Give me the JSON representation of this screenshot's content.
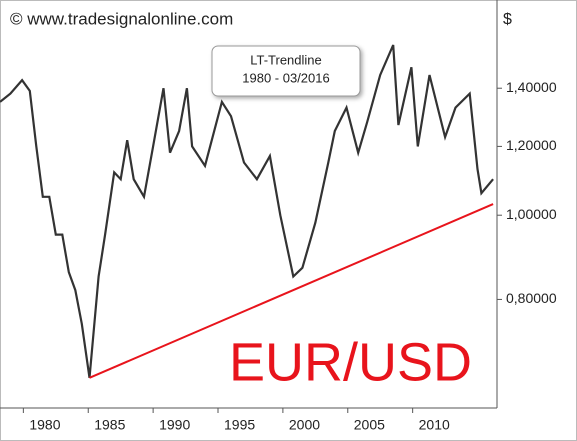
{
  "watermark": "© www.tradesignalonline.com",
  "chart_data": {
    "type": "line",
    "annotation": [
      "LT-Trendline",
      "1980 - 03/2016"
    ],
    "symbol": "EUR/USD",
    "y_axis_label": "$",
    "x": [
      1978.2,
      1979.0,
      1979.9,
      1980.5,
      1981.0,
      1981.5,
      1982.0,
      1982.5,
      1983.0,
      1983.5,
      1984.0,
      1984.5,
      1985.1,
      1985.8,
      1986.3,
      1987.0,
      1987.5,
      1988.0,
      1988.5,
      1989.3,
      1990.0,
      1990.8,
      1991.3,
      1992.0,
      1992.6,
      1993.0,
      1994.0,
      1995.3,
      1996.0,
      1997.0,
      1998.0,
      1999.0,
      1999.8,
      2000.8,
      2001.5,
      2002.5,
      2003.5,
      2004.0,
      2004.9,
      2005.8,
      2006.5,
      2007.5,
      2008.5,
      2008.9,
      2009.9,
      2010.4,
      2011.3,
      2012.5,
      2013.3,
      2014.4,
      2015.0,
      2015.3,
      2016.2
    ],
    "values": [
      1.35,
      1.38,
      1.43,
      1.39,
      1.2,
      1.05,
      1.05,
      0.95,
      0.95,
      0.86,
      0.82,
      0.75,
      0.65,
      0.85,
      0.95,
      1.12,
      1.1,
      1.22,
      1.1,
      1.05,
      1.2,
      1.4,
      1.18,
      1.25,
      1.4,
      1.2,
      1.14,
      1.35,
      1.3,
      1.15,
      1.1,
      1.17,
      1.0,
      0.85,
      0.87,
      0.98,
      1.15,
      1.25,
      1.33,
      1.18,
      1.28,
      1.45,
      1.57,
      1.27,
      1.48,
      1.2,
      1.45,
      1.23,
      1.33,
      1.38,
      1.13,
      1.06,
      1.1
    ],
    "color": "#333333",
    "trendline": {
      "x": [
        1985.1,
        2016.2
      ],
      "values": [
        0.65,
        1.03
      ],
      "color": "#e8141c"
    },
    "xlim": [
      1978.2,
      2016.5
    ],
    "xticks": [
      1980,
      1985,
      1990,
      1995,
      2000,
      2005,
      2010
    ],
    "ylim": [
      0.6,
      1.75
    ],
    "yticks": [
      {
        "value": 0.8,
        "label": "0,80000"
      },
      {
        "value": 1.0,
        "label": "1,00000"
      },
      {
        "value": 1.2,
        "label": "1,20000"
      },
      {
        "value": 1.4,
        "label": "1,40000"
      }
    ],
    "log_scale": true
  }
}
